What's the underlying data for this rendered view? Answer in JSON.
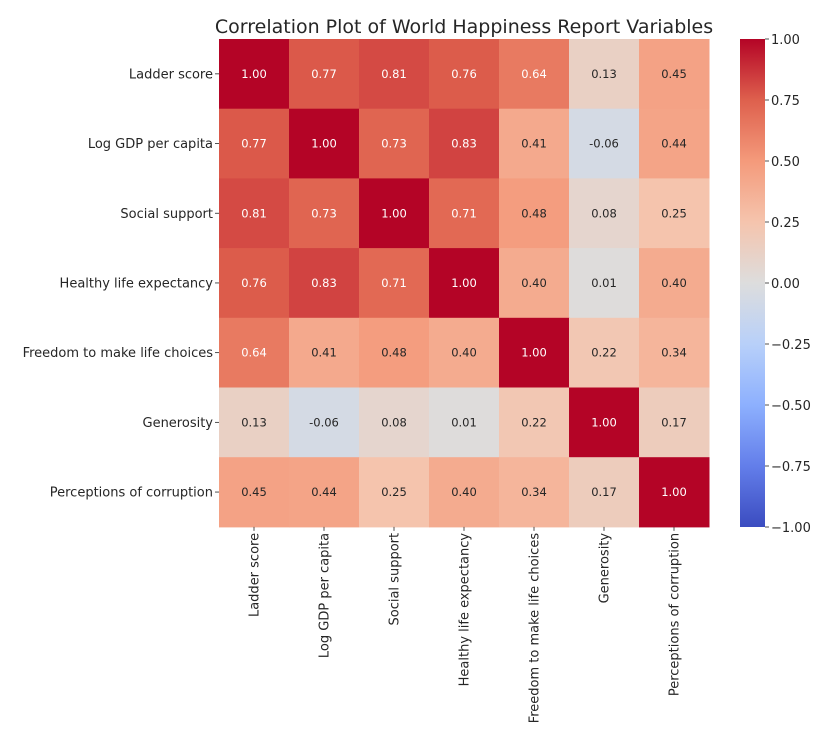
{
  "chart_data": {
    "type": "heatmap",
    "title": "Correlation Plot of World Happiness Report Variables",
    "xlabel": "",
    "ylabel": "",
    "row_labels": [
      "Ladder score",
      "Log GDP per capita",
      "Social support",
      "Healthy life expectancy",
      "Freedom to make life choices",
      "Generosity",
      "Perceptions of corruption"
    ],
    "col_labels": [
      "Ladder score",
      "Log GDP per capita",
      "Social support",
      "Healthy life expectancy",
      "Freedom to make life choices",
      "Generosity",
      "Perceptions of corruption"
    ],
    "values": [
      [
        1.0,
        0.77,
        0.81,
        0.76,
        0.64,
        0.13,
        0.45
      ],
      [
        0.77,
        1.0,
        0.73,
        0.83,
        0.41,
        -0.06,
        0.44
      ],
      [
        0.81,
        0.73,
        1.0,
        0.71,
        0.48,
        0.08,
        0.25
      ],
      [
        0.76,
        0.83,
        0.71,
        1.0,
        0.4,
        0.01,
        0.4
      ],
      [
        0.64,
        0.41,
        0.48,
        0.4,
        1.0,
        0.22,
        0.34
      ],
      [
        0.13,
        -0.06,
        0.08,
        0.01,
        0.22,
        1.0,
        0.17
      ],
      [
        0.45,
        0.44,
        0.25,
        0.4,
        0.34,
        0.17,
        1.0
      ]
    ],
    "annotations": [
      [
        "1.00",
        "0.77",
        "0.81",
        "0.76",
        "0.64",
        "0.13",
        "0.45"
      ],
      [
        "0.77",
        "1.00",
        "0.73",
        "0.83",
        "0.41",
        "-0.06",
        "0.44"
      ],
      [
        "0.81",
        "0.73",
        "1.00",
        "0.71",
        "0.48",
        "0.08",
        "0.25"
      ],
      [
        "0.76",
        "0.83",
        "0.71",
        "1.00",
        "0.40",
        "0.01",
        "0.40"
      ],
      [
        "0.64",
        "0.41",
        "0.48",
        "0.40",
        "1.00",
        "0.22",
        "0.34"
      ],
      [
        "0.13",
        "-0.06",
        "0.08",
        "0.01",
        "0.22",
        "1.00",
        "0.17"
      ],
      [
        "0.45",
        "0.44",
        "0.25",
        "0.40",
        "0.34",
        "0.17",
        "1.00"
      ]
    ],
    "colormap": "coolwarm",
    "vmin": -1.0,
    "vmax": 1.0,
    "colorbar": {
      "ticks": [
        1.0,
        0.75,
        0.5,
        0.25,
        0.0,
        -0.25,
        -0.5,
        -0.75,
        -1.0
      ],
      "tick_labels": [
        "1.00",
        "0.75",
        "0.50",
        "0.25",
        "0.00",
        "−0.25",
        "−0.50",
        "−0.75",
        "−1.00"
      ],
      "placement": "right"
    }
  }
}
